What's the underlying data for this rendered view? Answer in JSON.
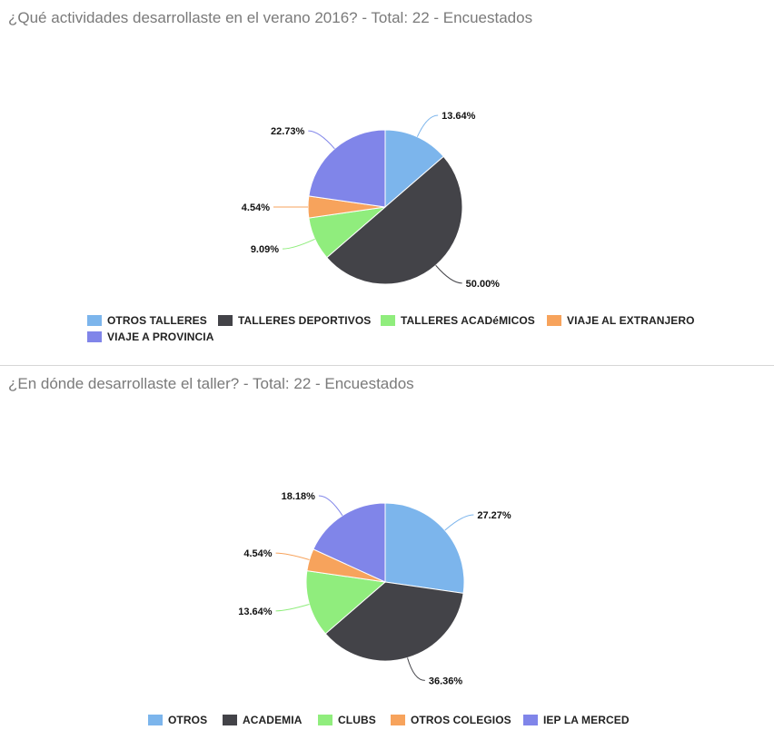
{
  "colors": {
    "blue": "#7cb5ec",
    "dark": "#434348",
    "green": "#90ed7d",
    "orange": "#f7a35c",
    "purple": "#8085e9",
    "divider": "#d6d6d6",
    "title": "#7a7a7a"
  },
  "chart_data": [
    {
      "type": "pie",
      "title": "¿Qué actividades desarrollaste en el verano 2016? - Total: 22 - Encuestados",
      "legend_position": "bottom",
      "slices": [
        {
          "name": "OTROS TALLERES",
          "value": 13.64,
          "label": "13.64%",
          "color": "#7cb5ec"
        },
        {
          "name": "TALLERES DEPORTIVOS",
          "value": 50.0,
          "label": "50.00%",
          "color": "#434348"
        },
        {
          "name": "TALLERES ACADéMICOS",
          "value": 9.09,
          "label": "9.09%",
          "color": "#90ed7d"
        },
        {
          "name": "VIAJE AL EXTRANJERO",
          "value": 4.54,
          "label": "4.54%",
          "color": "#f7a35c"
        },
        {
          "name": "VIAJE A PROVINCIA",
          "value": 22.73,
          "label": "22.73%",
          "color": "#8085e9"
        }
      ]
    },
    {
      "type": "pie",
      "title": "¿En dónde desarrollaste el taller? - Total: 22 - Encuestados",
      "legend_position": "bottom",
      "slices": [
        {
          "name": "OTROS",
          "value": 27.27,
          "label": "27.27%",
          "color": "#7cb5ec"
        },
        {
          "name": "ACADEMIA",
          "value": 36.36,
          "label": "36.36%",
          "color": "#434348"
        },
        {
          "name": "CLUBS",
          "value": 13.64,
          "label": "13.64%",
          "color": "#90ed7d"
        },
        {
          "name": "OTROS COLEGIOS",
          "value": 4.54,
          "label": "4.54%",
          "color": "#f7a35c"
        },
        {
          "name": "IEP LA MERCED",
          "value": 18.18,
          "label": "18.18%",
          "color": "#8085e9"
        }
      ]
    }
  ]
}
